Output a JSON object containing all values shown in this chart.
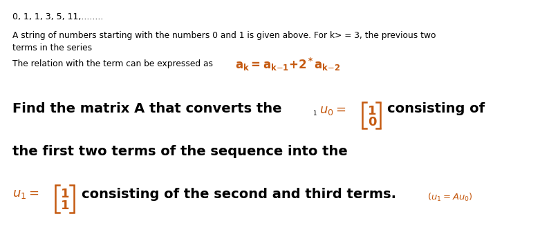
{
  "bg_color": "#ffffff",
  "text_color": "#000000",
  "orange_color": "#c55a11",
  "blue_color": "#2e4699",
  "figsize": [
    7.81,
    3.65
  ],
  "dpi": 100,
  "line1": "0, 1, 1, 3, 5, 11,........",
  "line2a": "A string of numbers starting with the numbers 0 and 1 is given above. For k> = 3, the previous two",
  "line2b": "terms in the series",
  "line3a": "The relation with the term can be expressed as",
  "line4_left": "Find the matrix A that converts the",
  "line5": "the first two terms of the sequence into the",
  "line6_right": "consisting of the second and third terms.",
  "annotation": "(u₁ = Au₀)"
}
